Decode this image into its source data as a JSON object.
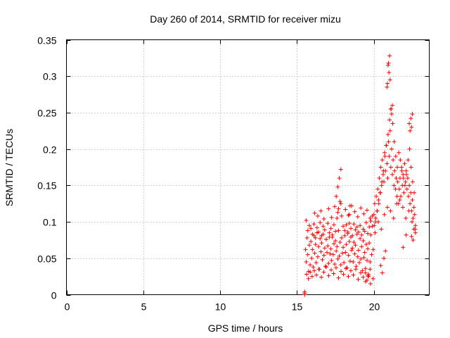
{
  "chart_data": {
    "type": "scatter",
    "title": "Day 260 of 2014, SRMTID for receiver mizu",
    "xlabel": "GPS time / hours",
    "ylabel": "SRMTID / TECUs",
    "xlim": [
      0,
      23.6
    ],
    "ylim": [
      0,
      0.35
    ],
    "x_ticks": [
      0,
      5,
      10,
      15,
      20
    ],
    "x_tick_labels": [
      "0",
      "5",
      "10",
      "15",
      "20"
    ],
    "y_ticks": [
      0,
      0.05,
      0.1,
      0.15,
      0.2,
      0.25,
      0.3,
      0.35
    ],
    "y_tick_labels": [
      "0",
      "0.05",
      "0.1",
      "0.15",
      "0.2",
      "0.25",
      "0.3",
      "0.35"
    ],
    "grid": true,
    "marker": "plus",
    "color": "#ff0000",
    "series": [
      {
        "name": "SRMTID",
        "x": [
          15.5,
          15.5,
          15.5,
          15.55,
          15.6,
          15.65,
          15.7,
          15.75,
          15.8,
          15.85,
          15.9,
          15.95,
          16.0,
          16.05,
          16.1,
          16.15,
          16.2,
          16.25,
          16.3,
          16.35,
          16.4,
          16.45,
          16.5,
          16.55,
          16.6,
          16.65,
          16.7,
          16.75,
          16.8,
          16.85,
          16.9,
          16.95,
          17.0,
          17.05,
          17.1,
          17.15,
          17.2,
          17.25,
          17.3,
          17.35,
          17.4,
          17.45,
          17.5,
          17.55,
          17.6,
          17.65,
          17.7,
          17.75,
          17.8,
          17.85,
          17.9,
          17.95,
          18.0,
          18.05,
          18.1,
          18.15,
          18.2,
          18.25,
          18.3,
          18.35,
          18.4,
          18.45,
          18.5,
          18.55,
          18.6,
          18.65,
          18.7,
          18.75,
          18.8,
          18.85,
          18.9,
          18.95,
          19.0,
          19.05,
          19.1,
          19.15,
          19.2,
          19.25,
          19.3,
          19.35,
          19.4,
          19.45,
          19.5,
          19.55,
          19.6,
          19.65,
          19.7,
          19.75,
          19.8,
          19.85,
          19.9,
          19.95,
          15.6,
          15.7,
          15.8,
          15.9,
          16.0,
          16.1,
          16.2,
          16.3,
          16.4,
          16.5,
          16.6,
          16.7,
          16.8,
          16.9,
          17.0,
          17.1,
          17.2,
          17.3,
          17.4,
          17.5,
          17.6,
          17.7,
          17.8,
          17.9,
          18.0,
          18.1,
          18.2,
          18.3,
          18.4,
          18.5,
          18.6,
          18.7,
          18.8,
          18.9,
          19.0,
          19.1,
          19.2,
          19.3,
          19.4,
          19.5,
          19.6,
          19.7,
          19.8,
          19.9,
          15.62,
          15.74,
          15.86,
          15.98,
          16.12,
          16.26,
          16.42,
          16.58,
          16.74,
          16.9,
          17.06,
          17.22,
          17.38,
          17.54,
          17.7,
          17.86,
          18.02,
          18.18,
          18.34,
          18.5,
          18.66,
          18.82,
          18.98,
          19.14,
          19.3,
          19.46,
          19.62,
          19.78,
          19.94,
          16.15,
          16.35,
          16.55,
          16.75,
          17.05,
          17.25,
          17.45,
          17.65,
          17.85,
          18.15,
          18.35,
          18.55,
          18.75,
          18.95,
          19.15,
          19.35,
          19.55,
          19.75,
          17.55,
          17.65,
          17.75,
          17.85,
          18.4,
          18.45,
          19.45,
          19.55,
          19.65,
          19.75,
          20.0,
          20.05,
          20.1,
          20.15,
          20.2,
          20.25,
          20.3,
          20.35,
          20.4,
          20.45,
          20.5,
          20.55,
          20.6,
          20.65,
          20.7,
          20.75,
          20.8,
          20.85,
          20.9,
          20.95,
          21.0,
          21.05,
          21.1,
          21.15,
          21.2,
          21.25,
          21.3,
          21.35,
          21.4,
          21.45,
          21.5,
          21.55,
          21.6,
          21.65,
          21.7,
          21.75,
          21.8,
          21.85,
          21.9,
          21.95,
          22.0,
          22.05,
          22.1,
          22.15,
          22.2,
          22.25,
          22.3,
          22.35,
          22.4,
          22.45,
          22.5,
          22.55,
          22.6,
          22.65,
          22.7,
          20.02,
          20.12,
          20.22,
          20.32,
          20.42,
          20.52,
          20.62,
          20.72,
          20.82,
          20.92,
          21.02,
          21.12,
          21.22,
          21.32,
          21.42,
          21.52,
          21.62,
          21.72,
          21.82,
          21.92,
          22.02,
          22.12,
          22.22,
          22.32,
          22.42,
          22.52,
          22.62,
          20.08,
          20.28,
          20.48,
          20.68,
          20.88,
          21.08,
          21.28,
          21.48,
          21.68,
          21.88,
          22.08,
          22.28,
          22.48,
          22.68,
          20.45,
          20.55,
          20.65,
          20.75,
          20.85,
          20.88,
          20.92,
          20.95,
          20.98,
          21.02,
          21.05,
          21.1,
          21.15,
          21.2,
          21.9,
          22.1,
          22.3,
          22.35,
          22.4,
          22.45,
          22.5,
          22.45,
          22.55,
          22.6,
          22.7
        ],
        "y": [
          0.0,
          0.002,
          0.004,
          0.062,
          0.045,
          0.078,
          0.055,
          0.032,
          0.068,
          0.041,
          0.073,
          0.05,
          0.062,
          0.038,
          0.081,
          0.057,
          0.069,
          0.044,
          0.085,
          0.052,
          0.066,
          0.035,
          0.077,
          0.059,
          0.071,
          0.048,
          0.083,
          0.054,
          0.064,
          0.039,
          0.076,
          0.058,
          0.067,
          0.043,
          0.079,
          0.056,
          0.063,
          0.047,
          0.082,
          0.055,
          0.07,
          0.042,
          0.074,
          0.06,
          0.066,
          0.049,
          0.088,
          0.053,
          0.072,
          0.041,
          0.078,
          0.057,
          0.065,
          0.044,
          0.081,
          0.058,
          0.069,
          0.037,
          0.086,
          0.054,
          0.073,
          0.046,
          0.079,
          0.061,
          0.064,
          0.045,
          0.072,
          0.056,
          0.068,
          0.039,
          0.083,
          0.052,
          0.061,
          0.044,
          0.077,
          0.049,
          0.066,
          0.033,
          0.074,
          0.051,
          0.058,
          0.036,
          0.069,
          0.047,
          0.063,
          0.028,
          0.071,
          0.045,
          0.082,
          0.055,
          0.094,
          0.062,
          0.102,
          0.088,
          0.095,
          0.091,
          0.083,
          0.097,
          0.078,
          0.092,
          0.086,
          0.099,
          0.081,
          0.094,
          0.089,
          0.076,
          0.098,
          0.085,
          0.091,
          0.079,
          0.096,
          0.087,
          0.105,
          0.118,
          0.128,
          0.108,
          0.094,
          0.088,
          0.096,
          0.084,
          0.098,
          0.091,
          0.081,
          0.097,
          0.089,
          0.093,
          0.086,
          0.095,
          0.082,
          0.09,
          0.087,
          0.099,
          0.084,
          0.093,
          0.101,
          0.108,
          0.028,
          0.022,
          0.031,
          0.025,
          0.033,
          0.027,
          0.035,
          0.024,
          0.031,
          0.038,
          0.026,
          0.034,
          0.029,
          0.037,
          0.023,
          0.032,
          0.028,
          0.036,
          0.025,
          0.033,
          0.027,
          0.035,
          0.021,
          0.03,
          0.024,
          0.018,
          0.026,
          0.015,
          0.022,
          0.112,
          0.108,
          0.115,
          0.104,
          0.118,
          0.106,
          0.121,
          0.113,
          0.125,
          0.117,
          0.109,
          0.122,
          0.114,
          0.107,
          0.119,
          0.111,
          0.116,
          0.105,
          0.135,
          0.148,
          0.16,
          0.172,
          0.11,
          0.122,
          0.03,
          0.02,
          0.025,
          0.035,
          0.11,
          0.125,
          0.1,
          0.135,
          0.115,
          0.145,
          0.13,
          0.16,
          0.14,
          0.175,
          0.15,
          0.185,
          0.165,
          0.155,
          0.195,
          0.17,
          0.205,
          0.18,
          0.16,
          0.21,
          0.19,
          0.225,
          0.175,
          0.2,
          0.165,
          0.185,
          0.15,
          0.17,
          0.145,
          0.16,
          0.135,
          0.155,
          0.125,
          0.145,
          0.16,
          0.135,
          0.175,
          0.15,
          0.165,
          0.14,
          0.18,
          0.155,
          0.17,
          0.145,
          0.16,
          0.135,
          0.15,
          0.125,
          0.14,
          0.115,
          0.13,
          0.105,
          0.12,
          0.11,
          0.095,
          0.095,
          0.105,
          0.115,
          0.125,
          0.14,
          0.155,
          0.17,
          0.19,
          0.205,
          0.22,
          0.24,
          0.255,
          0.235,
          0.21,
          0.19,
          0.175,
          0.195,
          0.185,
          0.17,
          0.16,
          0.15,
          0.165,
          0.185,
          0.2,
          0.175,
          0.155,
          0.14,
          0.085,
          0.1,
          0.09,
          0.11,
          0.12,
          0.115,
          0.105,
          0.125,
          0.13,
          0.12,
          0.105,
          0.115,
          0.1,
          0.09,
          0.04,
          0.03,
          0.05,
          0.06,
          0.285,
          0.29,
          0.315,
          0.318,
          0.305,
          0.328,
          0.295,
          0.255,
          0.248,
          0.26,
          0.065,
          0.082,
          0.235,
          0.225,
          0.242,
          0.23,
          0.248,
          0.08,
          0.075,
          0.09,
          0.085
        ]
      }
    ]
  }
}
